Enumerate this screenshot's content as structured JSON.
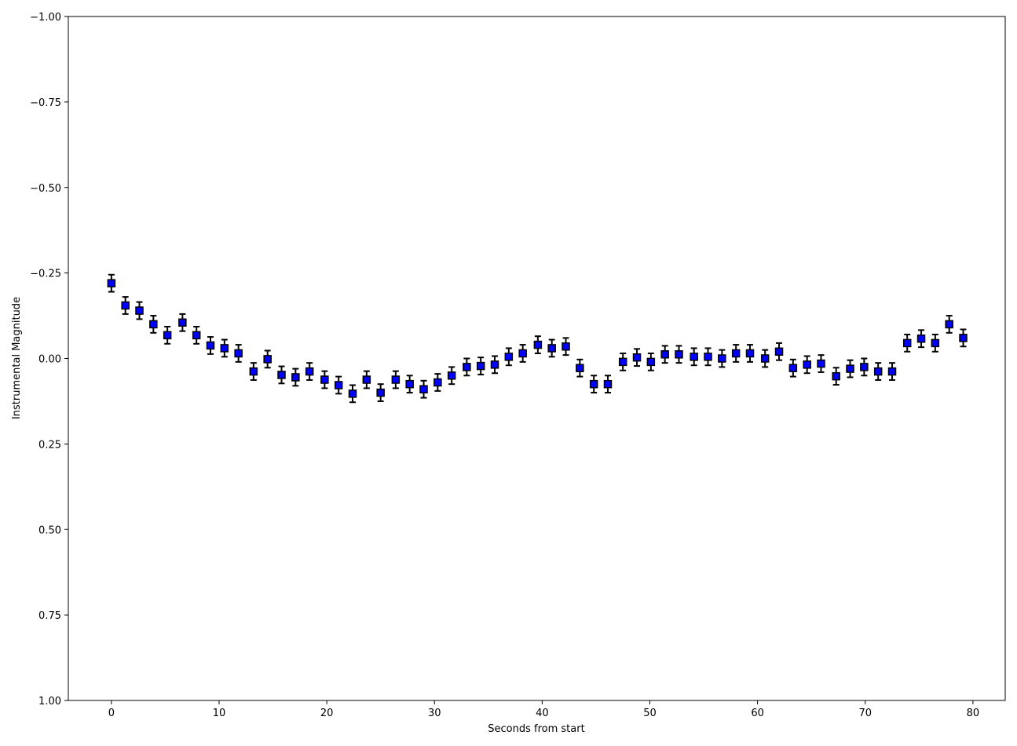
{
  "chart_data": {
    "type": "scatter",
    "title": "",
    "xlabel": "Seconds from start",
    "ylabel": "Instrumental Magnitude",
    "xlim": [
      -4,
      83
    ],
    "ylim": [
      -1.0,
      1.0
    ],
    "y_inverted": true,
    "grid": false,
    "legend": "none",
    "x_ticks": [
      0,
      10,
      20,
      30,
      40,
      50,
      60,
      70,
      80
    ],
    "x_tick_labels": [
      "0",
      "10",
      "20",
      "30",
      "40",
      "50",
      "60",
      "70",
      "80"
    ],
    "y_ticks": [
      -1.0,
      -0.75,
      -0.5,
      -0.25,
      0.0,
      0.25,
      0.5,
      0.75,
      1.0
    ],
    "y_tick_labels": [
      "−1.00",
      "−0.75",
      "−0.50",
      "−0.25",
      "0.00",
      "0.25",
      "0.50",
      "0.75",
      "1.00"
    ],
    "marker_color": "#0000ff",
    "marker_edge_color": "#000000",
    "errorbar_color": "#000000",
    "error": 0.025,
    "x": [
      0.0,
      1.3,
      2.6,
      3.9,
      5.2,
      6.6,
      7.9,
      9.2,
      10.5,
      11.8,
      13.2,
      14.5,
      15.8,
      17.1,
      18.4,
      19.8,
      21.1,
      22.4,
      23.7,
      25.0,
      26.4,
      27.7,
      29.0,
      30.3,
      31.6,
      33.0,
      34.3,
      35.6,
      36.9,
      38.2,
      39.6,
      40.9,
      42.2,
      43.5,
      44.8,
      46.1,
      47.5,
      48.8,
      50.1,
      51.4,
      52.7,
      54.1,
      55.4,
      56.7,
      58.0,
      59.3,
      60.7,
      62.0,
      63.3,
      64.6,
      65.9,
      67.3,
      68.6,
      69.9,
      71.2,
      72.5,
      73.9,
      75.2,
      76.5,
      77.8,
      79.1
    ],
    "y": [
      -0.22,
      -0.155,
      -0.14,
      -0.1,
      -0.068,
      -0.105,
      -0.068,
      -0.038,
      -0.03,
      -0.015,
      0.038,
      0.002,
      0.048,
      0.055,
      0.038,
      0.062,
      0.078,
      0.103,
      0.062,
      0.1,
      0.062,
      0.075,
      0.09,
      0.07,
      0.05,
      0.025,
      0.022,
      0.018,
      -0.005,
      -0.015,
      -0.04,
      -0.03,
      -0.035,
      0.028,
      0.075,
      0.075,
      0.01,
      -0.003,
      0.01,
      -0.012,
      -0.012,
      -0.005,
      -0.005,
      0.0,
      -0.015,
      -0.015,
      0.0,
      -0.02,
      0.028,
      0.018,
      0.015,
      0.052,
      0.03,
      0.025,
      0.038,
      0.038,
      -0.045,
      -0.058,
      -0.045,
      -0.1,
      -0.06
    ]
  }
}
